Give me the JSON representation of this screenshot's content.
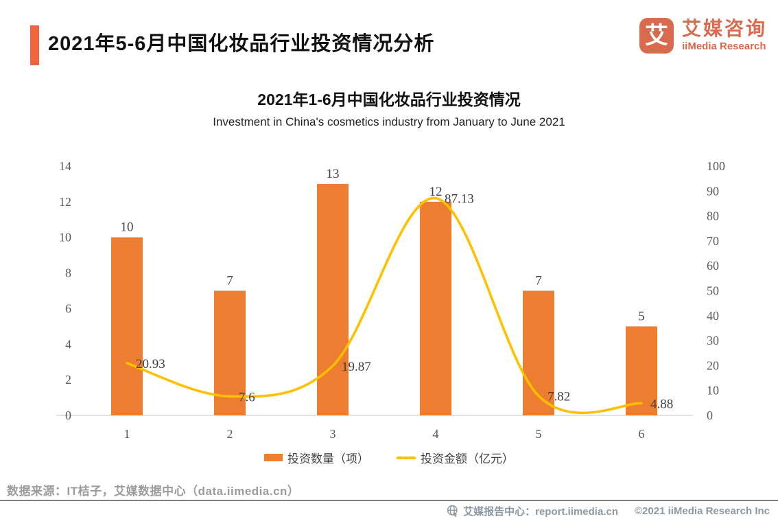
{
  "header": {
    "title": "2021年5-6月中国化妆品行业投资情况分析",
    "accent_color": "#F0653F"
  },
  "logo": {
    "glyph": "艾",
    "name_cn": "艾媒咨询",
    "name_en": "iiMedia Research",
    "color": "#D96A4E"
  },
  "chart_data": {
    "type": "combo",
    "title": "2021年1-6月中国化妆品行业投资情况",
    "subtitle": "Investment in China's cosmetics industry from January to June 2021",
    "categories": [
      "1",
      "2",
      "3",
      "4",
      "5",
      "6"
    ],
    "series": [
      {
        "name": "投资数量（项）",
        "type": "bar",
        "axis": "left",
        "color": "#ED7D31",
        "values": [
          10,
          7,
          13,
          12,
          7,
          5
        ]
      },
      {
        "name": "投资金额（亿元）",
        "type": "line",
        "axis": "right",
        "color": "#FFC000",
        "values": [
          20.93,
          7.6,
          19.87,
          87.13,
          7.82,
          4.88
        ]
      }
    ],
    "left_axis": {
      "min": 0,
      "max": 14,
      "step": 2,
      "ticks": [
        0,
        2,
        4,
        6,
        8,
        10,
        12,
        14
      ]
    },
    "right_axis": {
      "min": 0,
      "max": 100,
      "step": 10,
      "ticks": [
        0,
        10,
        20,
        30,
        40,
        50,
        60,
        70,
        80,
        90,
        100
      ]
    },
    "grid": false,
    "legend_position": "bottom",
    "axis_text_color": "#595959",
    "label_text_color": "#404040",
    "axis_line_color": "#D9D9D9"
  },
  "source": {
    "text": "数据来源：IT桔子，艾媒数据中心（data.iimedia.cn）"
  },
  "footer": {
    "report_center": "艾媒报告中心：report.iimedia.cn",
    "copyright": "©2021  iiMedia Research  Inc"
  }
}
